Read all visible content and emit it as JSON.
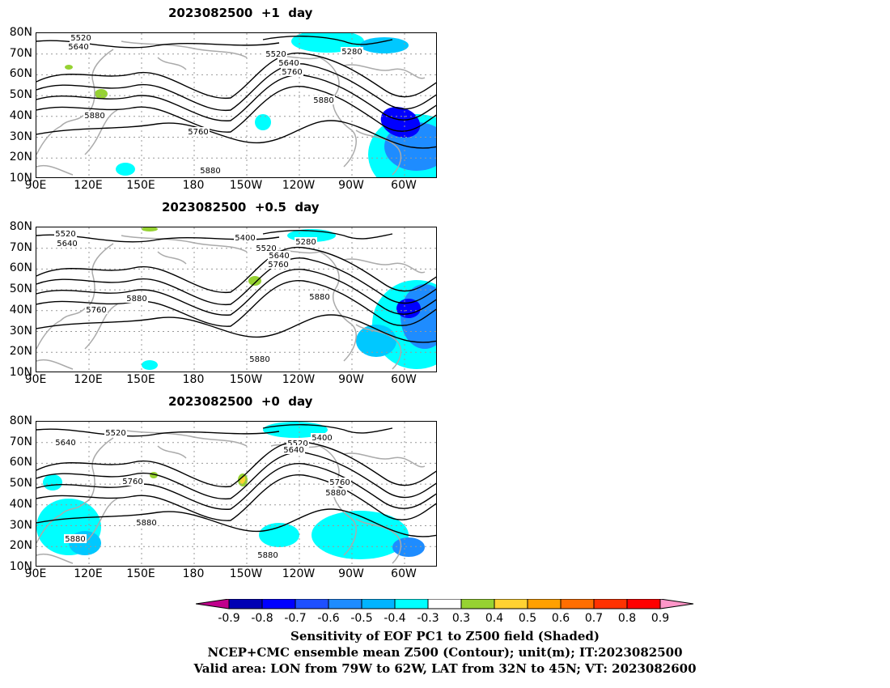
{
  "panels": [
    {
      "title": "2023082500  +1  day",
      "contour_labels": [
        "5520",
        "5640",
        "5520",
        "5280",
        "5640",
        "5760",
        "5880",
        "5760",
        "5880",
        "5880"
      ]
    },
    {
      "title": "2023082500  +0.5  day",
      "contour_labels": [
        "5520",
        "5640",
        "5400",
        "5280",
        "5520",
        "5640",
        "5760",
        "5760",
        "5880",
        "5880",
        "5880"
      ]
    },
    {
      "title": "2023082500  +0  day",
      "contour_labels": [
        "5520",
        "5640",
        "5400",
        "5520",
        "5640",
        "5760",
        "5760",
        "5880",
        "5880",
        "5880",
        "5880"
      ]
    }
  ],
  "lat_ticks": [
    "80N",
    "70N",
    "60N",
    "50N",
    "40N",
    "30N",
    "20N",
    "10N"
  ],
  "lon_ticks": [
    "90E",
    "120E",
    "150E",
    "180",
    "150W",
    "120W",
    "90W",
    "60W"
  ],
  "colorbar": {
    "labels": [
      "-0.9",
      "-0.8",
      "-0.7",
      "-0.6",
      "-0.5",
      "-0.4",
      "-0.3",
      "0.3",
      "0.4",
      "0.5",
      "0.6",
      "0.7",
      "0.8",
      "0.9"
    ],
    "colors": [
      "#c0008c",
      "#0000b4",
      "#0000ff",
      "#1e50ff",
      "#1e8cff",
      "#00b4ff",
      "#00ffff",
      "#ffffff",
      "#96d232",
      "#ffd232",
      "#ffa000",
      "#ff6e00",
      "#ff3200",
      "#ff0000",
      "#ff96c8"
    ]
  },
  "caption": {
    "line1": "Sensitivity of EOF PC1 to Z500 field (Shaded)",
    "line2": "NCEP+CMC ensemble mean Z500 (Contour); unit(m); IT:2023082500",
    "line3": "Valid area: LON from 79W to 62W, LAT from 32N to 45N; VT: 2023082600"
  }
}
